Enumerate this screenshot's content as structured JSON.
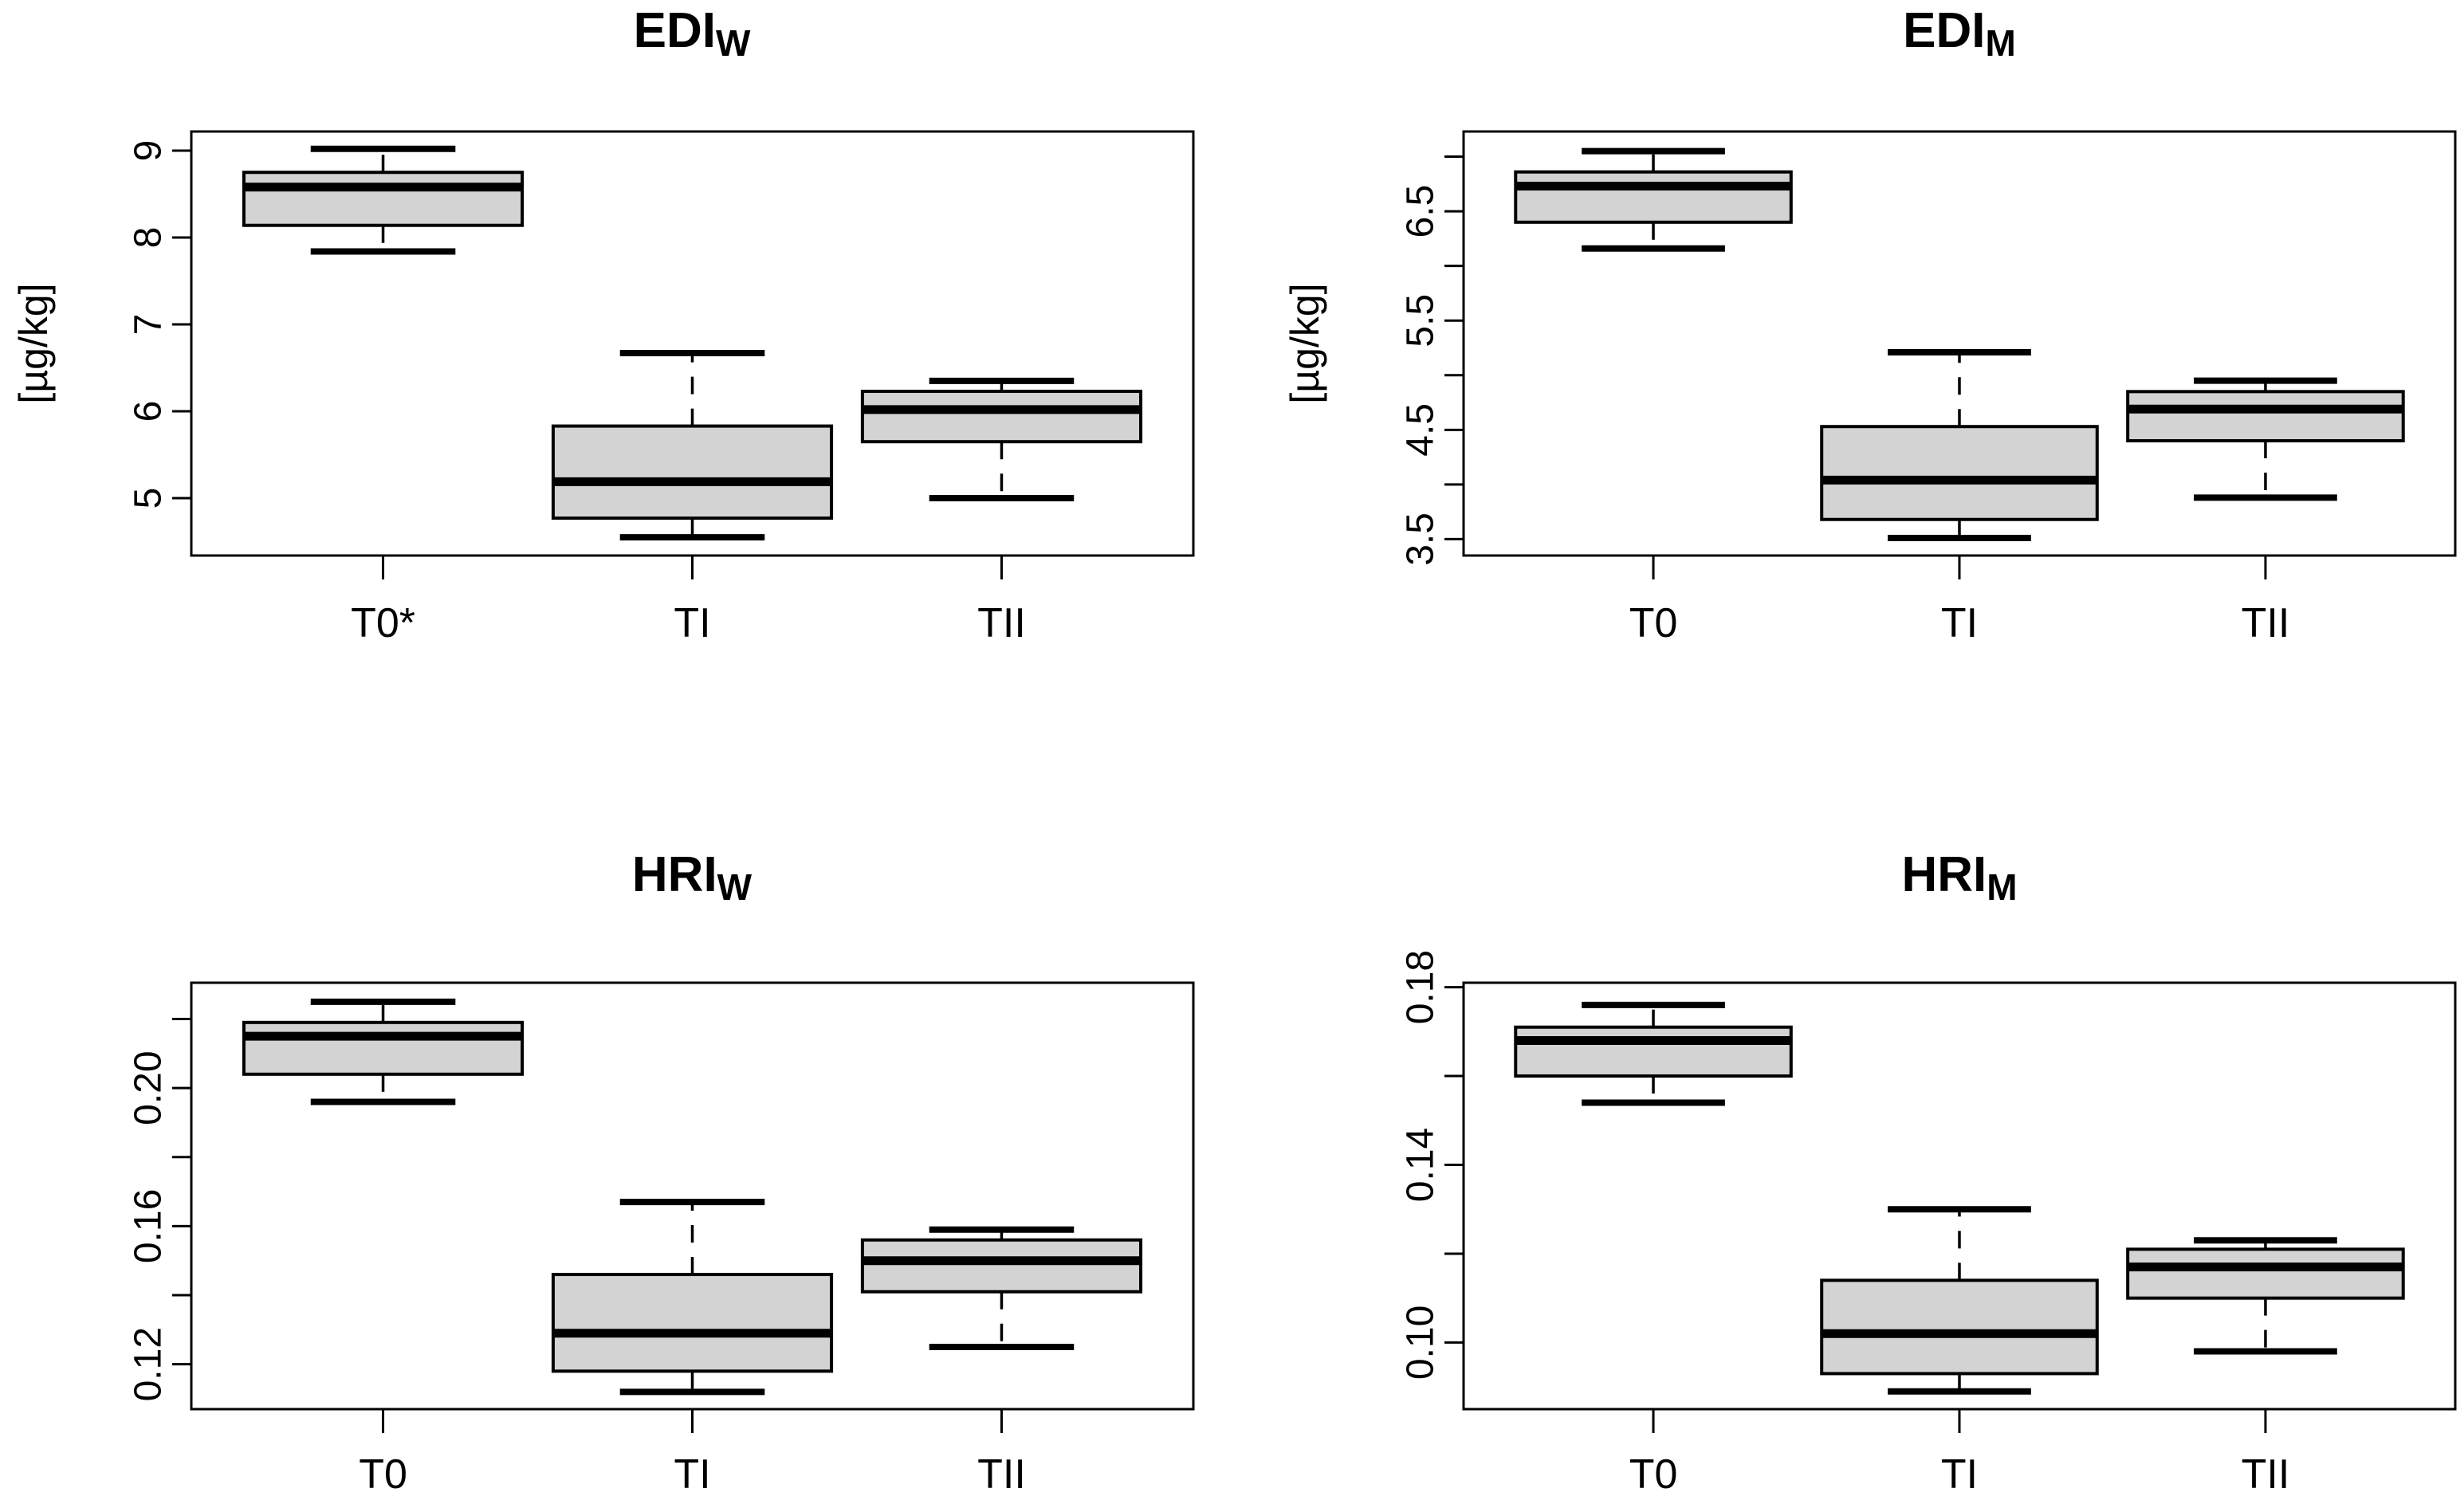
{
  "figure": {
    "description_visible_text_only": "Four boxplot panels arranged in a 2x2 grid",
    "colors": {
      "background": "#ffffff",
      "box_fill": "#d3d3d3",
      "line": "#000000",
      "text": "#000000"
    }
  },
  "chart_data": [
    {
      "type": "box",
      "title_main": "EDI",
      "title_sub": "W",
      "ylabel": "[µg/kg]",
      "categories": [
        "T0*",
        "TI",
        "TII"
      ],
      "ylim": [
        4.34,
        9.22
      ],
      "grid": false,
      "legend": "none",
      "yticks": [
        {
          "v": 5,
          "label": "5"
        },
        {
          "v": 6,
          "label": "6"
        },
        {
          "v": 7,
          "label": "7"
        },
        {
          "v": 8,
          "label": "8"
        },
        {
          "v": 9,
          "label": "9"
        }
      ],
      "boxes": [
        {
          "category": "T0*",
          "whisker_low": 7.84,
          "q1": 8.14,
          "median": 8.58,
          "q3": 8.75,
          "whisker_high": 9.02
        },
        {
          "category": "TI",
          "whisker_low": 4.55,
          "q1": 4.77,
          "median": 5.19,
          "q3": 5.83,
          "whisker_high": 6.67
        },
        {
          "category": "TII",
          "whisker_low": 5.0,
          "q1": 5.65,
          "median": 6.02,
          "q3": 6.23,
          "whisker_high": 6.35
        }
      ]
    },
    {
      "type": "box",
      "title_main": "EDI",
      "title_sub": "M",
      "ylabel": "[µg/kg]",
      "categories": [
        "T0",
        "TI",
        "TII"
      ],
      "ylim": [
        3.35,
        7.23
      ],
      "grid": false,
      "legend": "none",
      "yticks": [
        {
          "v": 3.5,
          "label": "3.5"
        },
        {
          "v": 4.0,
          "label": ""
        },
        {
          "v": 4.5,
          "label": "4.5"
        },
        {
          "v": 5.0,
          "label": ""
        },
        {
          "v": 5.5,
          "label": "5.5"
        },
        {
          "v": 6.0,
          "label": ""
        },
        {
          "v": 6.5,
          "label": "6.5"
        },
        {
          "v": 7.0,
          "label": ""
        }
      ],
      "boxes": [
        {
          "category": "T0",
          "whisker_low": 6.16,
          "q1": 6.4,
          "median": 6.73,
          "q3": 6.86,
          "whisker_high": 7.05
        },
        {
          "category": "TI",
          "whisker_low": 3.51,
          "q1": 3.68,
          "median": 4.04,
          "q3": 4.53,
          "whisker_high": 5.21
        },
        {
          "category": "TII",
          "whisker_low": 3.88,
          "q1": 4.4,
          "median": 4.69,
          "q3": 4.85,
          "whisker_high": 4.95
        }
      ]
    },
    {
      "type": "box",
      "title_main": "HRI",
      "title_sub": "W",
      "ylabel": "",
      "categories": [
        "T0",
        "TI",
        "TII"
      ],
      "ylim": [
        0.107,
        0.2305
      ],
      "grid": false,
      "legend": "none",
      "yticks": [
        {
          "v": 0.12,
          "label": "0.12"
        },
        {
          "v": 0.14,
          "label": ""
        },
        {
          "v": 0.16,
          "label": "0.16"
        },
        {
          "v": 0.18,
          "label": ""
        },
        {
          "v": 0.2,
          "label": "0.20"
        },
        {
          "v": 0.22,
          "label": ""
        }
      ],
      "boxes": [
        {
          "category": "T0",
          "whisker_low": 0.196,
          "q1": 0.204,
          "median": 0.215,
          "q3": 0.219,
          "whisker_high": 0.225
        },
        {
          "category": "TI",
          "whisker_low": 0.112,
          "q1": 0.118,
          "median": 0.129,
          "q3": 0.146,
          "whisker_high": 0.167
        },
        {
          "category": "TII",
          "whisker_low": 0.125,
          "q1": 0.141,
          "median": 0.15,
          "q3": 0.156,
          "whisker_high": 0.159
        }
      ]
    },
    {
      "type": "box",
      "title_main": "HRI",
      "title_sub": "M",
      "ylabel": "",
      "categories": [
        "T0",
        "TI",
        "TII"
      ],
      "ylim": [
        0.085,
        0.181
      ],
      "grid": false,
      "legend": "none",
      "yticks": [
        {
          "v": 0.1,
          "label": "0.10"
        },
        {
          "v": 0.12,
          "label": ""
        },
        {
          "v": 0.14,
          "label": "0.14"
        },
        {
          "v": 0.16,
          "label": ""
        },
        {
          "v": 0.18,
          "label": "0.18"
        }
      ],
      "boxes": [
        {
          "category": "T0",
          "whisker_low": 0.154,
          "q1": 0.16,
          "median": 0.168,
          "q3": 0.171,
          "whisker_high": 0.176
        },
        {
          "category": "TI",
          "whisker_low": 0.089,
          "q1": 0.093,
          "median": 0.102,
          "q3": 0.114,
          "whisker_high": 0.13
        },
        {
          "category": "TII",
          "whisker_low": 0.098,
          "q1": 0.11,
          "median": 0.117,
          "q3": 0.121,
          "whisker_high": 0.123
        }
      ]
    }
  ]
}
